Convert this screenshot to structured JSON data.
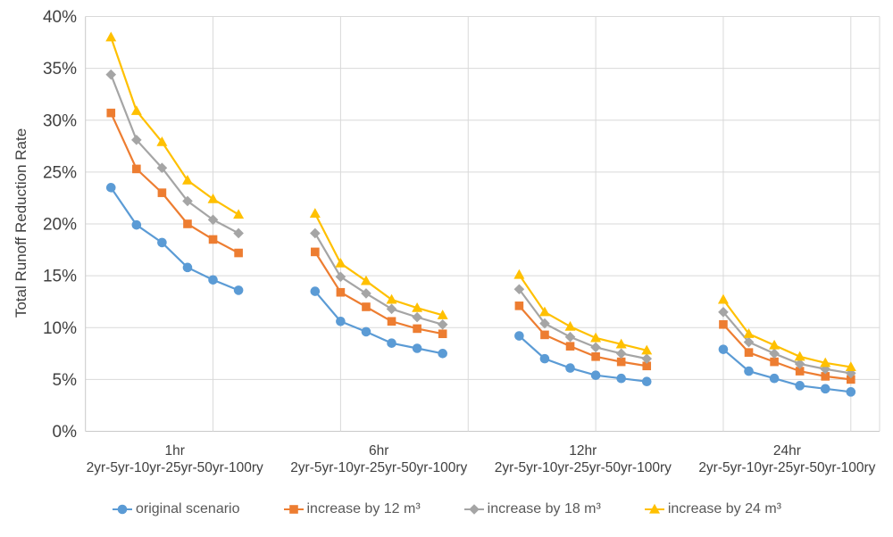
{
  "chart_data": {
    "type": "line",
    "title": "",
    "xlabel": "",
    "ylabel": "Total Runoff Reduction Rate",
    "ylim": [
      0,
      40
    ],
    "ytick_step": 5,
    "ytick_labels": [
      "0%",
      "5%",
      "10%",
      "15%",
      "20%",
      "25%",
      "30%",
      "35%",
      "40%"
    ],
    "grid": true,
    "legend_position": "bottom",
    "colors": {
      "gridline": "#D9D9D9",
      "axis_line": "#C9C9C9",
      "axis_text": "#404040",
      "legend_text": "#595959"
    },
    "groups": [
      {
        "label": "1hr",
        "sublabel": "2yr-5yr-10yr-25yr-50yr-100ry"
      },
      {
        "label": "6hr",
        "sublabel": "2yr-5yr-10yr-25yr-50yr-100ry"
      },
      {
        "label": "12hr",
        "sublabel": "2yr-5yr-10yr-25yr-50yr-100ry"
      },
      {
        "label": "24hr",
        "sublabel": "2yr-5yr-10yr-25yr-50yr-100ry"
      }
    ],
    "series": [
      {
        "name": "original scenario",
        "color": "#5B9BD5",
        "marker": "circle",
        "values_by_group": [
          [
            23.5,
            19.9,
            18.2,
            15.8,
            14.6,
            13.6
          ],
          [
            13.5,
            10.6,
            9.6,
            8.5,
            8.0,
            7.5
          ],
          [
            9.2,
            7.0,
            6.1,
            5.4,
            5.1,
            4.8
          ],
          [
            7.9,
            5.8,
            5.1,
            4.4,
            4.1,
            3.8
          ]
        ]
      },
      {
        "name": "increase by 12 m³",
        "color": "#ED7D31",
        "marker": "square",
        "values_by_group": [
          [
            30.7,
            25.3,
            23.0,
            20.0,
            18.5,
            17.2
          ],
          [
            17.3,
            13.4,
            12.0,
            10.6,
            9.9,
            9.4
          ],
          [
            12.1,
            9.3,
            8.2,
            7.2,
            6.7,
            6.3
          ],
          [
            10.3,
            7.6,
            6.7,
            5.8,
            5.3,
            5.0
          ]
        ]
      },
      {
        "name": "increase by 18 m³",
        "color": "#A5A5A5",
        "marker": "diamond",
        "values_by_group": [
          [
            34.4,
            28.1,
            25.4,
            22.2,
            20.4,
            19.1
          ],
          [
            19.1,
            14.9,
            13.3,
            11.8,
            11.0,
            10.3
          ],
          [
            13.7,
            10.4,
            9.1,
            8.1,
            7.5,
            7.0
          ],
          [
            11.5,
            8.6,
            7.5,
            6.5,
            6.0,
            5.6
          ]
        ]
      },
      {
        "name": "increase by 24 m³",
        "color": "#FFC000",
        "marker": "triangle",
        "values_by_group": [
          [
            38.0,
            30.9,
            27.9,
            24.2,
            22.4,
            20.9
          ],
          [
            21.0,
            16.2,
            14.5,
            12.7,
            11.9,
            11.2
          ],
          [
            15.1,
            11.5,
            10.1,
            9.0,
            8.4,
            7.8
          ],
          [
            12.7,
            9.4,
            8.3,
            7.2,
            6.6,
            6.2
          ]
        ]
      }
    ]
  }
}
